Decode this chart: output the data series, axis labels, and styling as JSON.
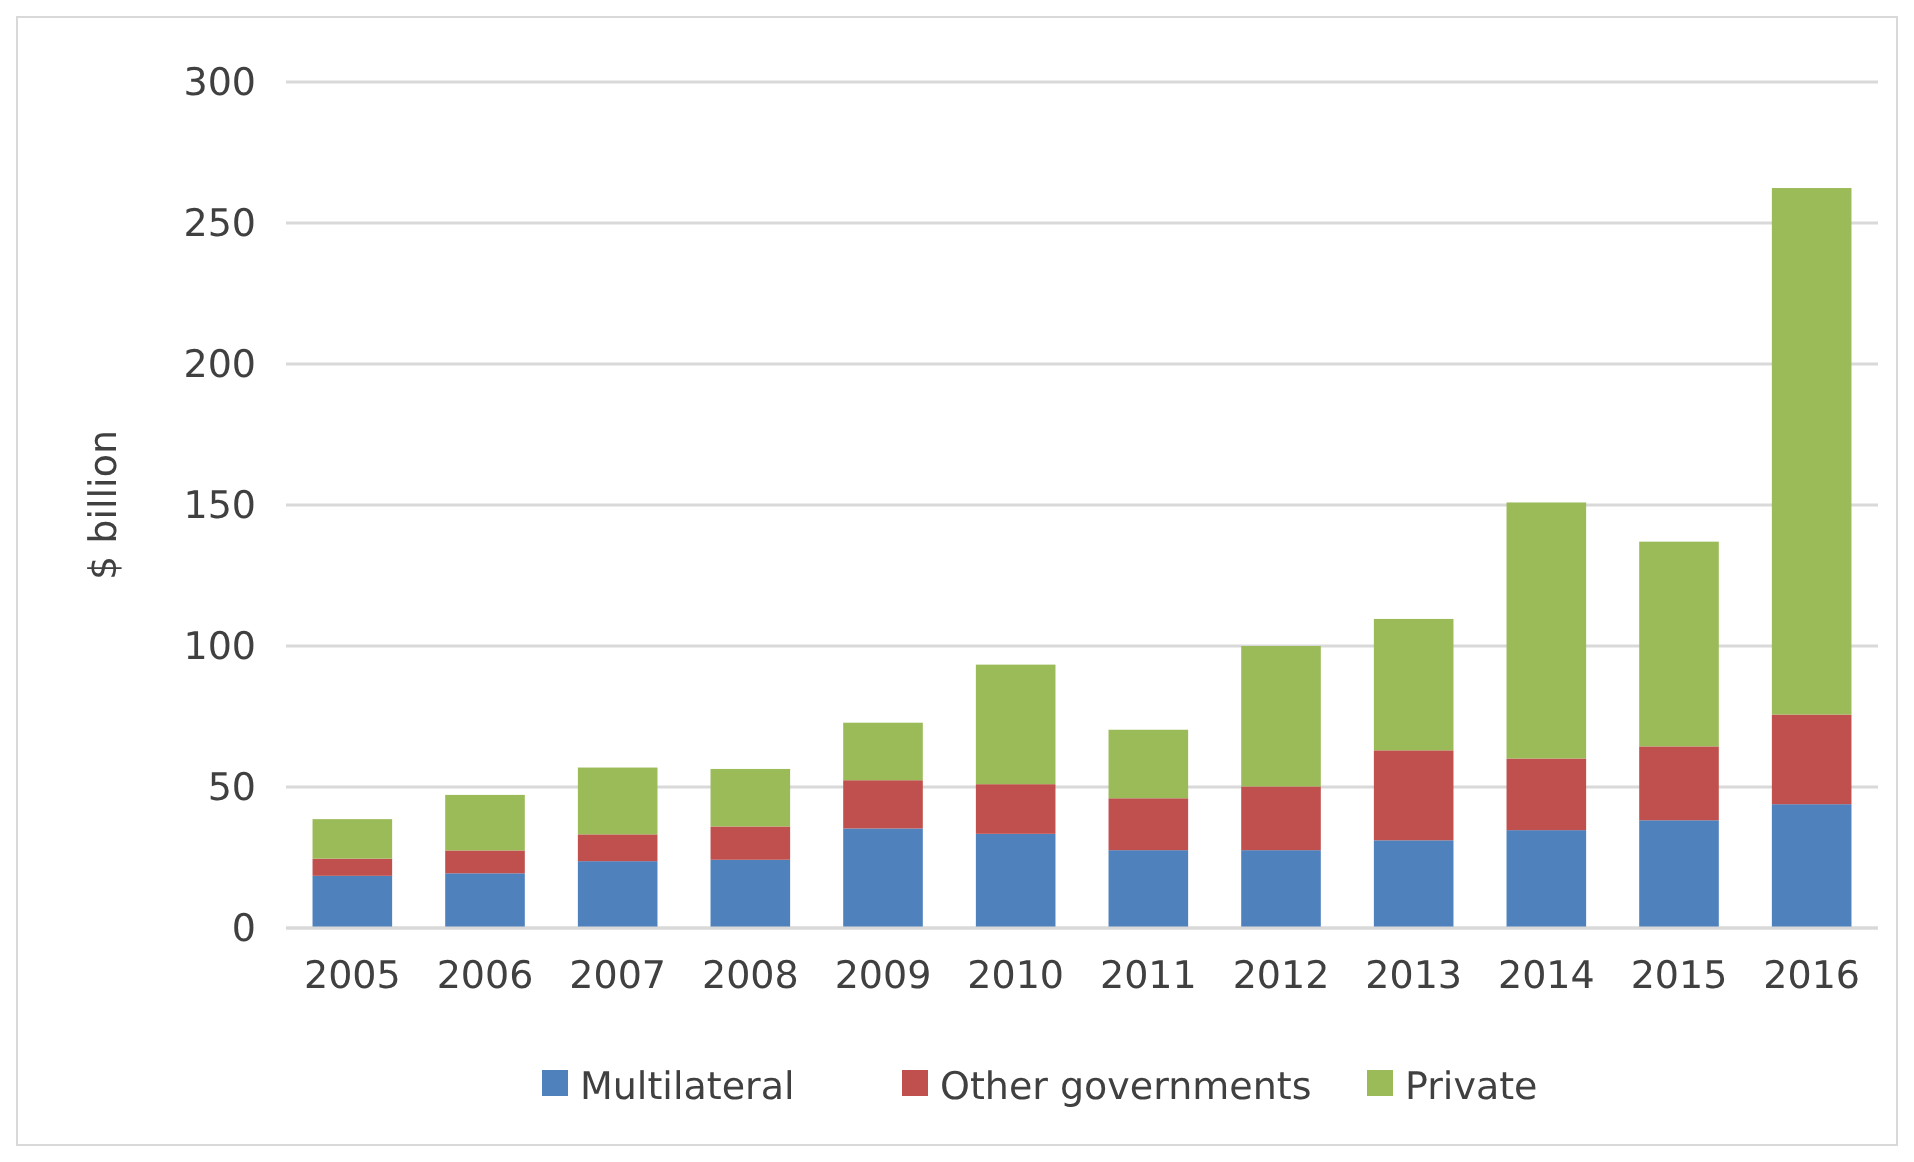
{
  "chart_data": {
    "type": "bar",
    "stacked": true,
    "ylabel": "$ billion",
    "categories": [
      "2005",
      "2006",
      "2007",
      "2008",
      "2009",
      "2010",
      "2011",
      "2012",
      "2013",
      "2014",
      "2015",
      "2016"
    ],
    "series": [
      {
        "name": "Multilateral",
        "color": "#4f81bd",
        "values": [
          18.5,
          19.4,
          23.7,
          24.2,
          35.3,
          33.4,
          27.6,
          27.6,
          31.1,
          34.7,
          38.2,
          43.9
        ]
      },
      {
        "name": "Other governments",
        "color": "#c0504d",
        "values": [
          6.1,
          8.1,
          9.5,
          11.8,
          17.1,
          17.6,
          18.4,
          22.6,
          31.9,
          25.4,
          26.2,
          31.8
        ]
      },
      {
        "name": "Private",
        "color": "#9bbb59",
        "values": [
          14.0,
          19.7,
          23.7,
          20.4,
          20.4,
          42.4,
          24.3,
          49.8,
          46.6,
          90.8,
          72.6,
          186.7
        ]
      }
    ],
    "ylim": [
      0,
      300
    ],
    "yticks": [
      0,
      50,
      100,
      150,
      200,
      250,
      300
    ],
    "grid": "y",
    "legend": "bottom"
  }
}
